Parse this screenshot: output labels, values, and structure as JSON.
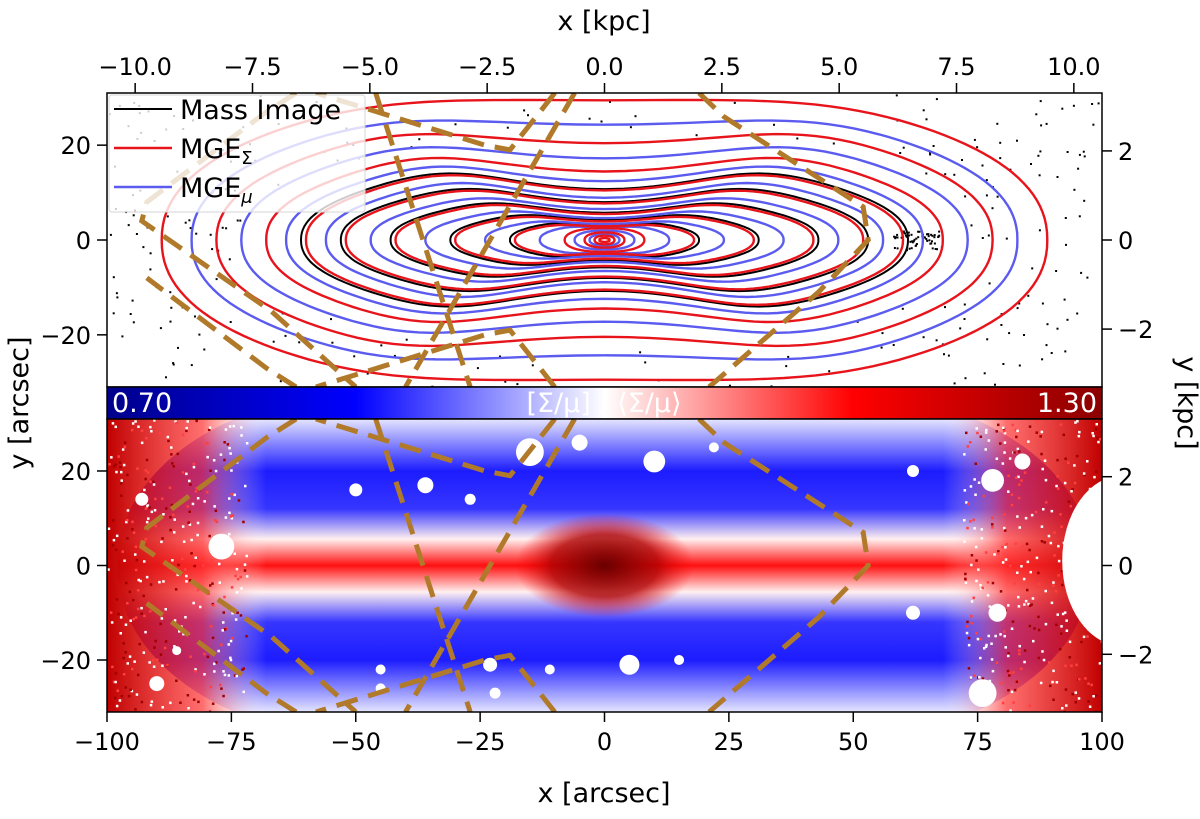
{
  "chart_data": [
    {
      "type": "contour",
      "panel": "top",
      "xlabel_top": "x [kpc]",
      "ylabel_left": "y [arcsec]",
      "ylabel_right": "y [kpc]",
      "xlim_arcsec": [
        -100,
        100
      ],
      "ylim_arcsec": [
        -31,
        31
      ],
      "xlim_kpc": [
        -10.6,
        10.6
      ],
      "ylim_kpc": [
        -3.3,
        3.3
      ],
      "xticks_kpc": [
        -10.0,
        -7.5,
        -5.0,
        -2.5,
        0.0,
        2.5,
        5.0,
        7.5,
        10.0
      ],
      "xtick_labels_kpc": [
        "−10.0",
        "−7.5",
        "−5.0",
        "−2.5",
        "0.0",
        "2.5",
        "5.0",
        "7.5",
        "10.0"
      ],
      "yticks_arcsec": [
        -20,
        0,
        20
      ],
      "ytick_labels_arcsec": [
        "−20",
        "0",
        "20"
      ],
      "yticks_kpc": [
        -2,
        0,
        2
      ],
      "ytick_labels_kpc": [
        "−2",
        "0",
        "2"
      ],
      "legend": {
        "placement": "upper-left",
        "entries": [
          {
            "label": "Mass Image",
            "color": "#000000"
          },
          {
            "label": "MGE",
            "subscript": "Σ",
            "color": "#e8141c"
          },
          {
            "label": "MGE",
            "subscript": "μ",
            "color": "#5b5bf0"
          }
        ]
      },
      "contours_red": [
        {
          "a": 89,
          "b": 31,
          "pinch": 0.05
        },
        {
          "a": 78,
          "b": 24,
          "pinch": 0.15
        },
        {
          "a": 68,
          "b": 18.5,
          "pinch": 0.22
        },
        {
          "a": 60,
          "b": 14.5,
          "pinch": 0.28
        },
        {
          "a": 52,
          "b": 11,
          "pinch": 0.3
        },
        {
          "a": 42,
          "b": 7.8,
          "pinch": 0.3
        },
        {
          "a": 30,
          "b": 5.2,
          "pinch": 0.25
        },
        {
          "a": 18,
          "b": 3.4,
          "pinch": 0.15
        },
        {
          "a": 8,
          "b": 2.5,
          "pinch": 0
        },
        {
          "a": 4,
          "b": 1.6,
          "pinch": 0
        },
        {
          "a": 2,
          "b": 0.9,
          "pinch": 0
        },
        {
          "a": 1,
          "b": 0.4,
          "pinch": 0
        }
      ],
      "contours_blue": [
        {
          "a": 83,
          "b": 27,
          "pinch": 0.1
        },
        {
          "a": 73,
          "b": 21,
          "pinch": 0.18
        },
        {
          "a": 64,
          "b": 16.5,
          "pinch": 0.25
        },
        {
          "a": 56,
          "b": 12.7,
          "pinch": 0.3
        },
        {
          "a": 47,
          "b": 9.3,
          "pinch": 0.3
        },
        {
          "a": 36,
          "b": 6.4,
          "pinch": 0.28
        },
        {
          "a": 24,
          "b": 4.2,
          "pinch": 0.2
        },
        {
          "a": 13,
          "b": 3.0,
          "pinch": 0.1
        },
        {
          "a": 6,
          "b": 2.0,
          "pinch": 0
        },
        {
          "a": 3,
          "b": 1.2,
          "pinch": 0
        }
      ],
      "contours_black": [
        {
          "a": 60,
          "b": 14.5,
          "pinch": 0.28
        },
        {
          "a": 52,
          "b": 11,
          "pinch": 0.3
        },
        {
          "a": 42,
          "b": 7.8,
          "pinch": 0.3
        },
        {
          "a": 30,
          "b": 5.2,
          "pinch": 0.25
        },
        {
          "a": 18,
          "b": 3.4,
          "pinch": 0.15
        }
      ],
      "dashed_polygon_arcsec": [
        [
          -62,
          31
        ],
        [
          -68,
          27
        ],
        [
          -92,
          8
        ],
        [
          -93,
          4
        ],
        [
          -67,
          -15
        ],
        [
          -50,
          -31
        ],
        [
          -10,
          31
        ],
        [
          -19,
          19
        ],
        [
          -24,
          20
        ],
        [
          -58,
          31
        ],
        [
          19,
          31
        ],
        [
          24,
          26
        ],
        [
          52,
          7
        ],
        [
          53,
          0
        ],
        [
          43,
          -11
        ],
        [
          21,
          -31
        ]
      ],
      "dashed_color": "#b07a2a"
    },
    {
      "type": "heatmap",
      "panel": "bottom",
      "colorbar": {
        "label": "[Σ/μ] / ⟨Σ/μ⟩",
        "min_label": "0.70",
        "max_label": "1.30",
        "vmin": 0.7,
        "vmax": 1.3,
        "colors": [
          "#00008b",
          "#0000ff",
          "#ffffff",
          "#ff0000",
          "#8b0000"
        ]
      },
      "xlabel": "x [arcsec]",
      "xlim": [
        -100,
        100
      ],
      "ylim": [
        -31,
        31
      ],
      "xticks": [
        -100,
        -75,
        -50,
        -25,
        0,
        25,
        50,
        75,
        100
      ],
      "xtick_labels": [
        "−100",
        "−75",
        "−50",
        "−25",
        "0",
        "25",
        "50",
        "75",
        "100"
      ],
      "yticks": [
        -20,
        0,
        20
      ],
      "ytick_labels": [
        "−20",
        "0",
        "20"
      ],
      "yticks_kpc": [
        -2,
        0,
        2
      ],
      "ytick_labels_kpc": [
        "−2",
        "0",
        "2"
      ],
      "masked_stars_arcsec": [
        [
          -15,
          24,
          2.8
        ],
        [
          -5,
          26,
          1.6
        ],
        [
          10,
          22,
          2.2
        ],
        [
          22,
          25,
          1.0
        ],
        [
          -50,
          16,
          1.3
        ],
        [
          -36,
          17,
          1.6
        ],
        [
          -77,
          4,
          2.6
        ],
        [
          -93,
          14,
          1.3
        ],
        [
          -27,
          14,
          1.1
        ],
        [
          62,
          20,
          1.2
        ],
        [
          78,
          18,
          2.3
        ],
        [
          84,
          22,
          1.6
        ],
        [
          -86,
          -18,
          0.9
        ],
        [
          -45,
          -22,
          1.0
        ],
        [
          -11,
          -22,
          1.0
        ],
        [
          -23,
          -21,
          1.4
        ],
        [
          5,
          -21,
          2.0
        ],
        [
          -90,
          -25,
          1.5
        ],
        [
          -45,
          -26,
          1.0
        ],
        [
          -22,
          -27,
          1.1
        ],
        [
          15,
          -20,
          1.0
        ],
        [
          62,
          -10,
          1.4
        ],
        [
          79,
          -10,
          1.8
        ],
        [
          76,
          -27,
          2.8
        ]
      ]
    }
  ]
}
